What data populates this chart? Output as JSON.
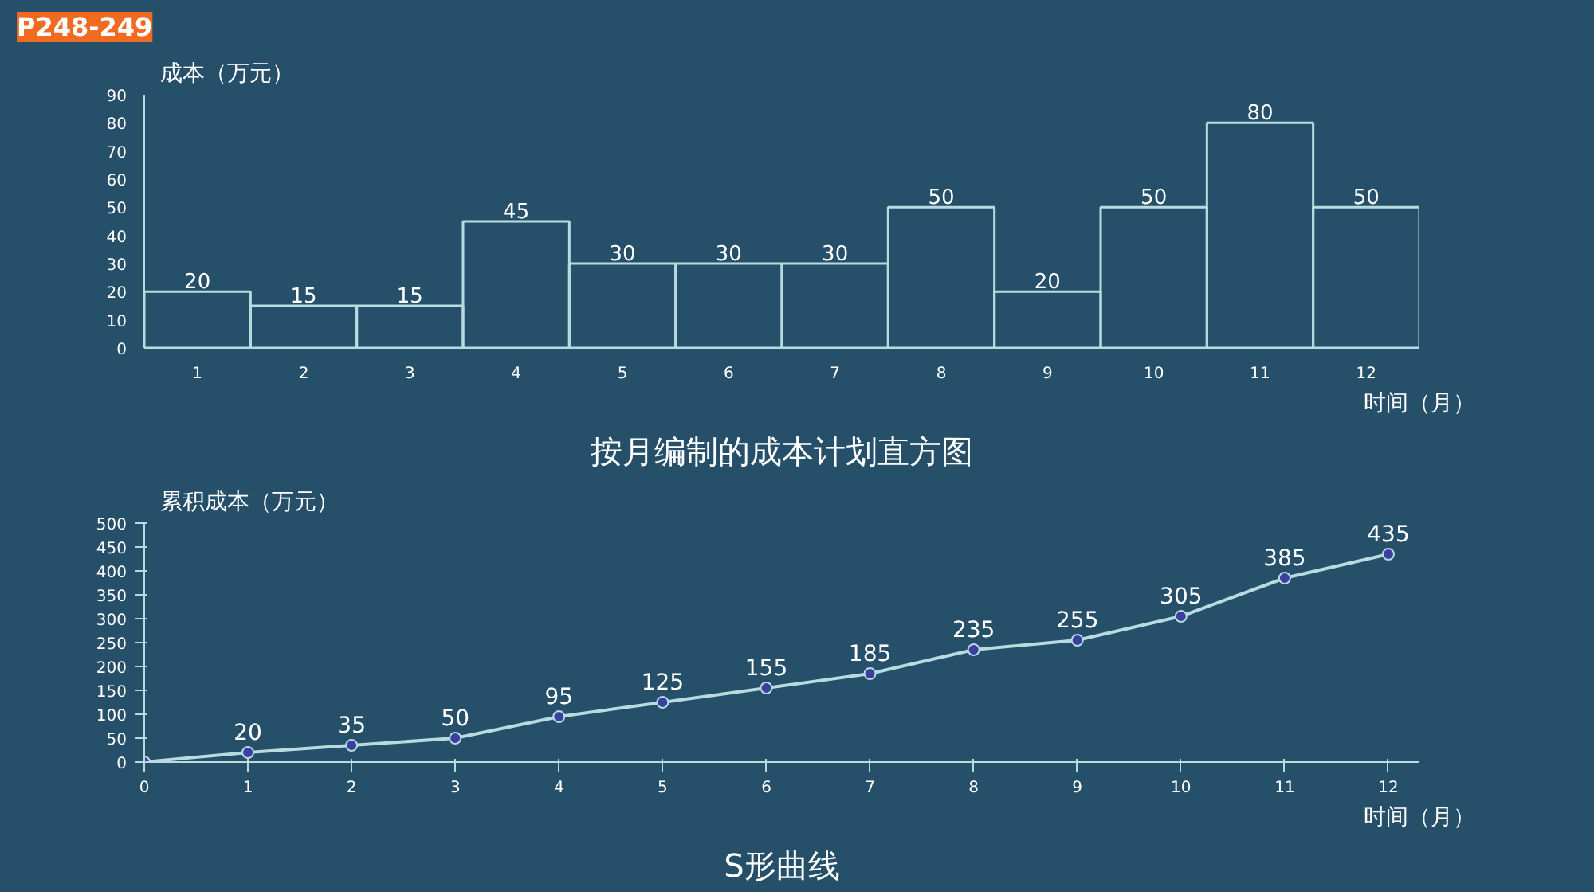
{
  "chart_data": [
    {
      "type": "bar",
      "title": "按月编制的成本计划直方图",
      "xlabel": "时间（月）",
      "ylabel": "成本（万元）",
      "annotations": [
        "P248-249"
      ],
      "categories": [
        "1",
        "2",
        "3",
        "4",
        "5",
        "6",
        "7",
        "8",
        "9",
        "10",
        "11",
        "12"
      ],
      "values": [
        20,
        15,
        15,
        45,
        30,
        30,
        30,
        50,
        20,
        50,
        80,
        50
      ],
      "color": "#b8dbe0",
      "ylim": [
        0,
        90
      ],
      "yticks": [
        0,
        10,
        20,
        30,
        40,
        50,
        60,
        70,
        80,
        90
      ],
      "data_labels": true,
      "grid": false
    },
    {
      "type": "line",
      "title": "S形曲线",
      "xlabel": "时间（月）",
      "ylabel": "累积成本（万元）",
      "x": [
        0,
        1,
        2,
        3,
        4,
        5,
        6,
        7,
        8,
        9,
        10,
        11,
        12
      ],
      "series": [
        {
          "color": "#b8dbe0",
          "values": [
            0,
            20,
            35,
            50,
            95,
            125,
            155,
            185,
            235,
            255,
            305,
            385,
            435
          ],
          "value_labels": [
            null,
            "20",
            "35",
            "50",
            "95",
            "125",
            "155",
            "185",
            "235",
            "255",
            "305",
            "385",
            "435"
          ]
        }
      ],
      "xlim": [
        0,
        12.3
      ],
      "xticks": [
        0,
        1,
        2,
        3,
        4,
        5,
        6,
        7,
        8,
        9,
        10,
        11,
        12
      ],
      "ylim": [
        0,
        500
      ],
      "yticks": [
        0,
        50,
        100,
        150,
        200,
        250,
        300,
        350,
        400,
        450,
        500
      ],
      "marker": "circle",
      "line_style": "solid",
      "grid": false
    }
  ]
}
